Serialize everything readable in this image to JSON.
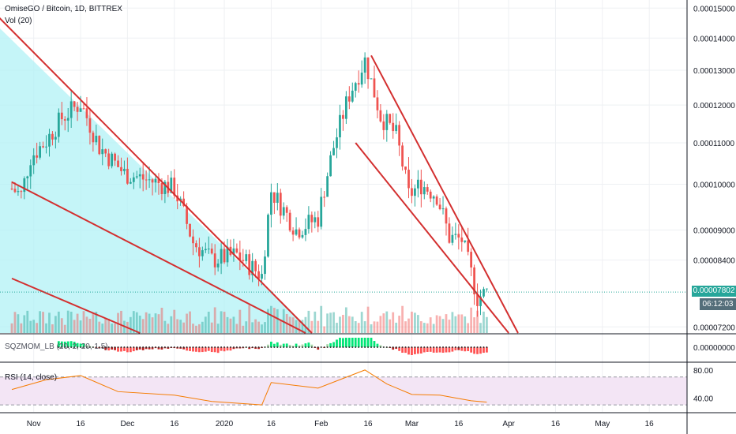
{
  "header": {
    "symbol_line": "OmiseGO / Bitcoin, 1D, BITTREX",
    "volume_label": "Vol (20)"
  },
  "indicators": {
    "sqzmom_label": "SQZMOM_LB (20, 2, 20, 1.5)",
    "rsi_label": "RSI (14, close)"
  },
  "price_axis": {
    "ticks": [
      "0.00015000",
      "0.00014000",
      "0.00013000",
      "0.00012000",
      "0.00011000",
      "0.00010000",
      "0.00009000",
      "0.00008400",
      "0.00007200"
    ],
    "current_price": "0.00007802",
    "countdown": "06:12:03",
    "current_color": "#26a69a"
  },
  "sqzmom_axis": {
    "ticks": [
      "0.00000000"
    ]
  },
  "rsi_axis": {
    "ticks": [
      "80.00",
      "40.00"
    ]
  },
  "time_axis": {
    "labels": [
      "Nov",
      "16",
      "Dec",
      "16",
      "2020",
      "16",
      "Feb",
      "16",
      "Mar",
      "16",
      "Apr",
      "16",
      "May",
      "16"
    ]
  },
  "colors": {
    "up": "#26a69a",
    "down": "#ef5350",
    "trendline": "#d32f2f",
    "wedge_fill": "#b2f2f5",
    "rsi_line": "#f57c00",
    "rsi_band": "#f3e5f5"
  },
  "chart_data": {
    "type": "candlestick",
    "symbol": "OmiseGO / Bitcoin",
    "interval": "1D",
    "exchange": "BITTREX",
    "y_range": [
      7.1e-05,
      0.000152
    ],
    "x_range": [
      "2019-10-25",
      "2020-05-20"
    ],
    "candles_anchor_path": [
      {
        "date": "2019-10-25",
        "close": 9.9e-05
      },
      {
        "date": "2019-10-28",
        "close": 9.75e-05
      },
      {
        "date": "2019-10-31",
        "close": 0.0001065
      },
      {
        "date": "2019-11-05",
        "close": 0.0001105
      },
      {
        "date": "2019-11-10",
        "close": 0.0001165
      },
      {
        "date": "2019-11-16",
        "close": 0.0001205
      },
      {
        "date": "2019-11-22",
        "close": 0.000109
      },
      {
        "date": "2019-11-30",
        "close": 0.0001025
      },
      {
        "date": "2019-12-10",
        "close": 0.0001005
      },
      {
        "date": "2019-12-16",
        "close": 9.9e-05
      },
      {
        "date": "2019-12-22",
        "close": 8.75e-05
      },
      {
        "date": "2019-12-28",
        "close": 8.4e-05
      },
      {
        "date": "2020-01-05",
        "close": 8.5e-05
      },
      {
        "date": "2020-01-13",
        "close": 8.1e-05
      },
      {
        "date": "2020-01-16",
        "close": 9.85e-05
      },
      {
        "date": "2020-01-24",
        "close": 9e-05
      },
      {
        "date": "2020-01-31",
        "close": 9.25e-05
      },
      {
        "date": "2020-02-05",
        "close": 0.000109
      },
      {
        "date": "2020-02-10",
        "close": 0.000123
      },
      {
        "date": "2020-02-15",
        "close": 0.000133
      },
      {
        "date": "2020-02-20",
        "close": 0.000117
      },
      {
        "date": "2020-02-25",
        "close": 0.000112
      },
      {
        "date": "2020-02-29",
        "close": 9.75e-05
      },
      {
        "date": "2020-03-04",
        "close": 0.0001
      },
      {
        "date": "2020-03-09",
        "close": 9.75e-05
      },
      {
        "date": "2020-03-13",
        "close": 8.85e-05
      },
      {
        "date": "2020-03-17",
        "close": 8.8e-05
      },
      {
        "date": "2020-03-22",
        "close": 7.7e-05
      },
      {
        "date": "2020-03-25",
        "close": 7.8e-05
      }
    ],
    "trendlines": [
      {
        "name": "upper-left",
        "from": {
          "date": "2019-10-17",
          "price": 0.000151
        },
        "to": {
          "date": "2020-01-29",
          "price": 7.1e-05
        }
      },
      {
        "name": "lower-left",
        "from": {
          "date": "2019-10-25",
          "price": 0.0001005
        },
        "to": {
          "date": "2020-01-27",
          "price": 7.1e-05
        }
      },
      {
        "name": "bottom-left",
        "from": {
          "date": "2019-10-25",
          "price": 8.05e-05
        },
        "to": {
          "date": "2019-12-05",
          "price": 7.1e-05
        }
      },
      {
        "name": "channel-upper",
        "from": {
          "date": "2020-02-17",
          "price": 0.0001345
        },
        "to": {
          "date": "2020-04-04",
          "price": 7.1e-05
        }
      },
      {
        "name": "channel-lower",
        "from": {
          "date": "2020-02-12",
          "price": 0.00011
        },
        "to": {
          "date": "2020-04-01",
          "price": 7.1e-05
        }
      }
    ],
    "rsi": {
      "levels": [
        70,
        30
      ],
      "axis_ticks": [
        80,
        40
      ],
      "path": [
        {
          "date": "2019-10-25",
          "value": 52
        },
        {
          "date": "2019-11-05",
          "value": 66
        },
        {
          "date": "2019-11-16",
          "value": 72
        },
        {
          "date": "2019-11-28",
          "value": 49
        },
        {
          "date": "2019-12-16",
          "value": 44
        },
        {
          "date": "2019-12-28",
          "value": 35
        },
        {
          "date": "2020-01-13",
          "value": 30
        },
        {
          "date": "2020-01-16",
          "value": 62
        },
        {
          "date": "2020-01-31",
          "value": 54
        },
        {
          "date": "2020-02-15",
          "value": 80
        },
        {
          "date": "2020-02-22",
          "value": 60
        },
        {
          "date": "2020-03-01",
          "value": 45
        },
        {
          "date": "2020-03-10",
          "value": 44
        },
        {
          "date": "2020-03-20",
          "value": 36
        },
        {
          "date": "2020-03-25",
          "value": 34
        }
      ]
    }
  }
}
